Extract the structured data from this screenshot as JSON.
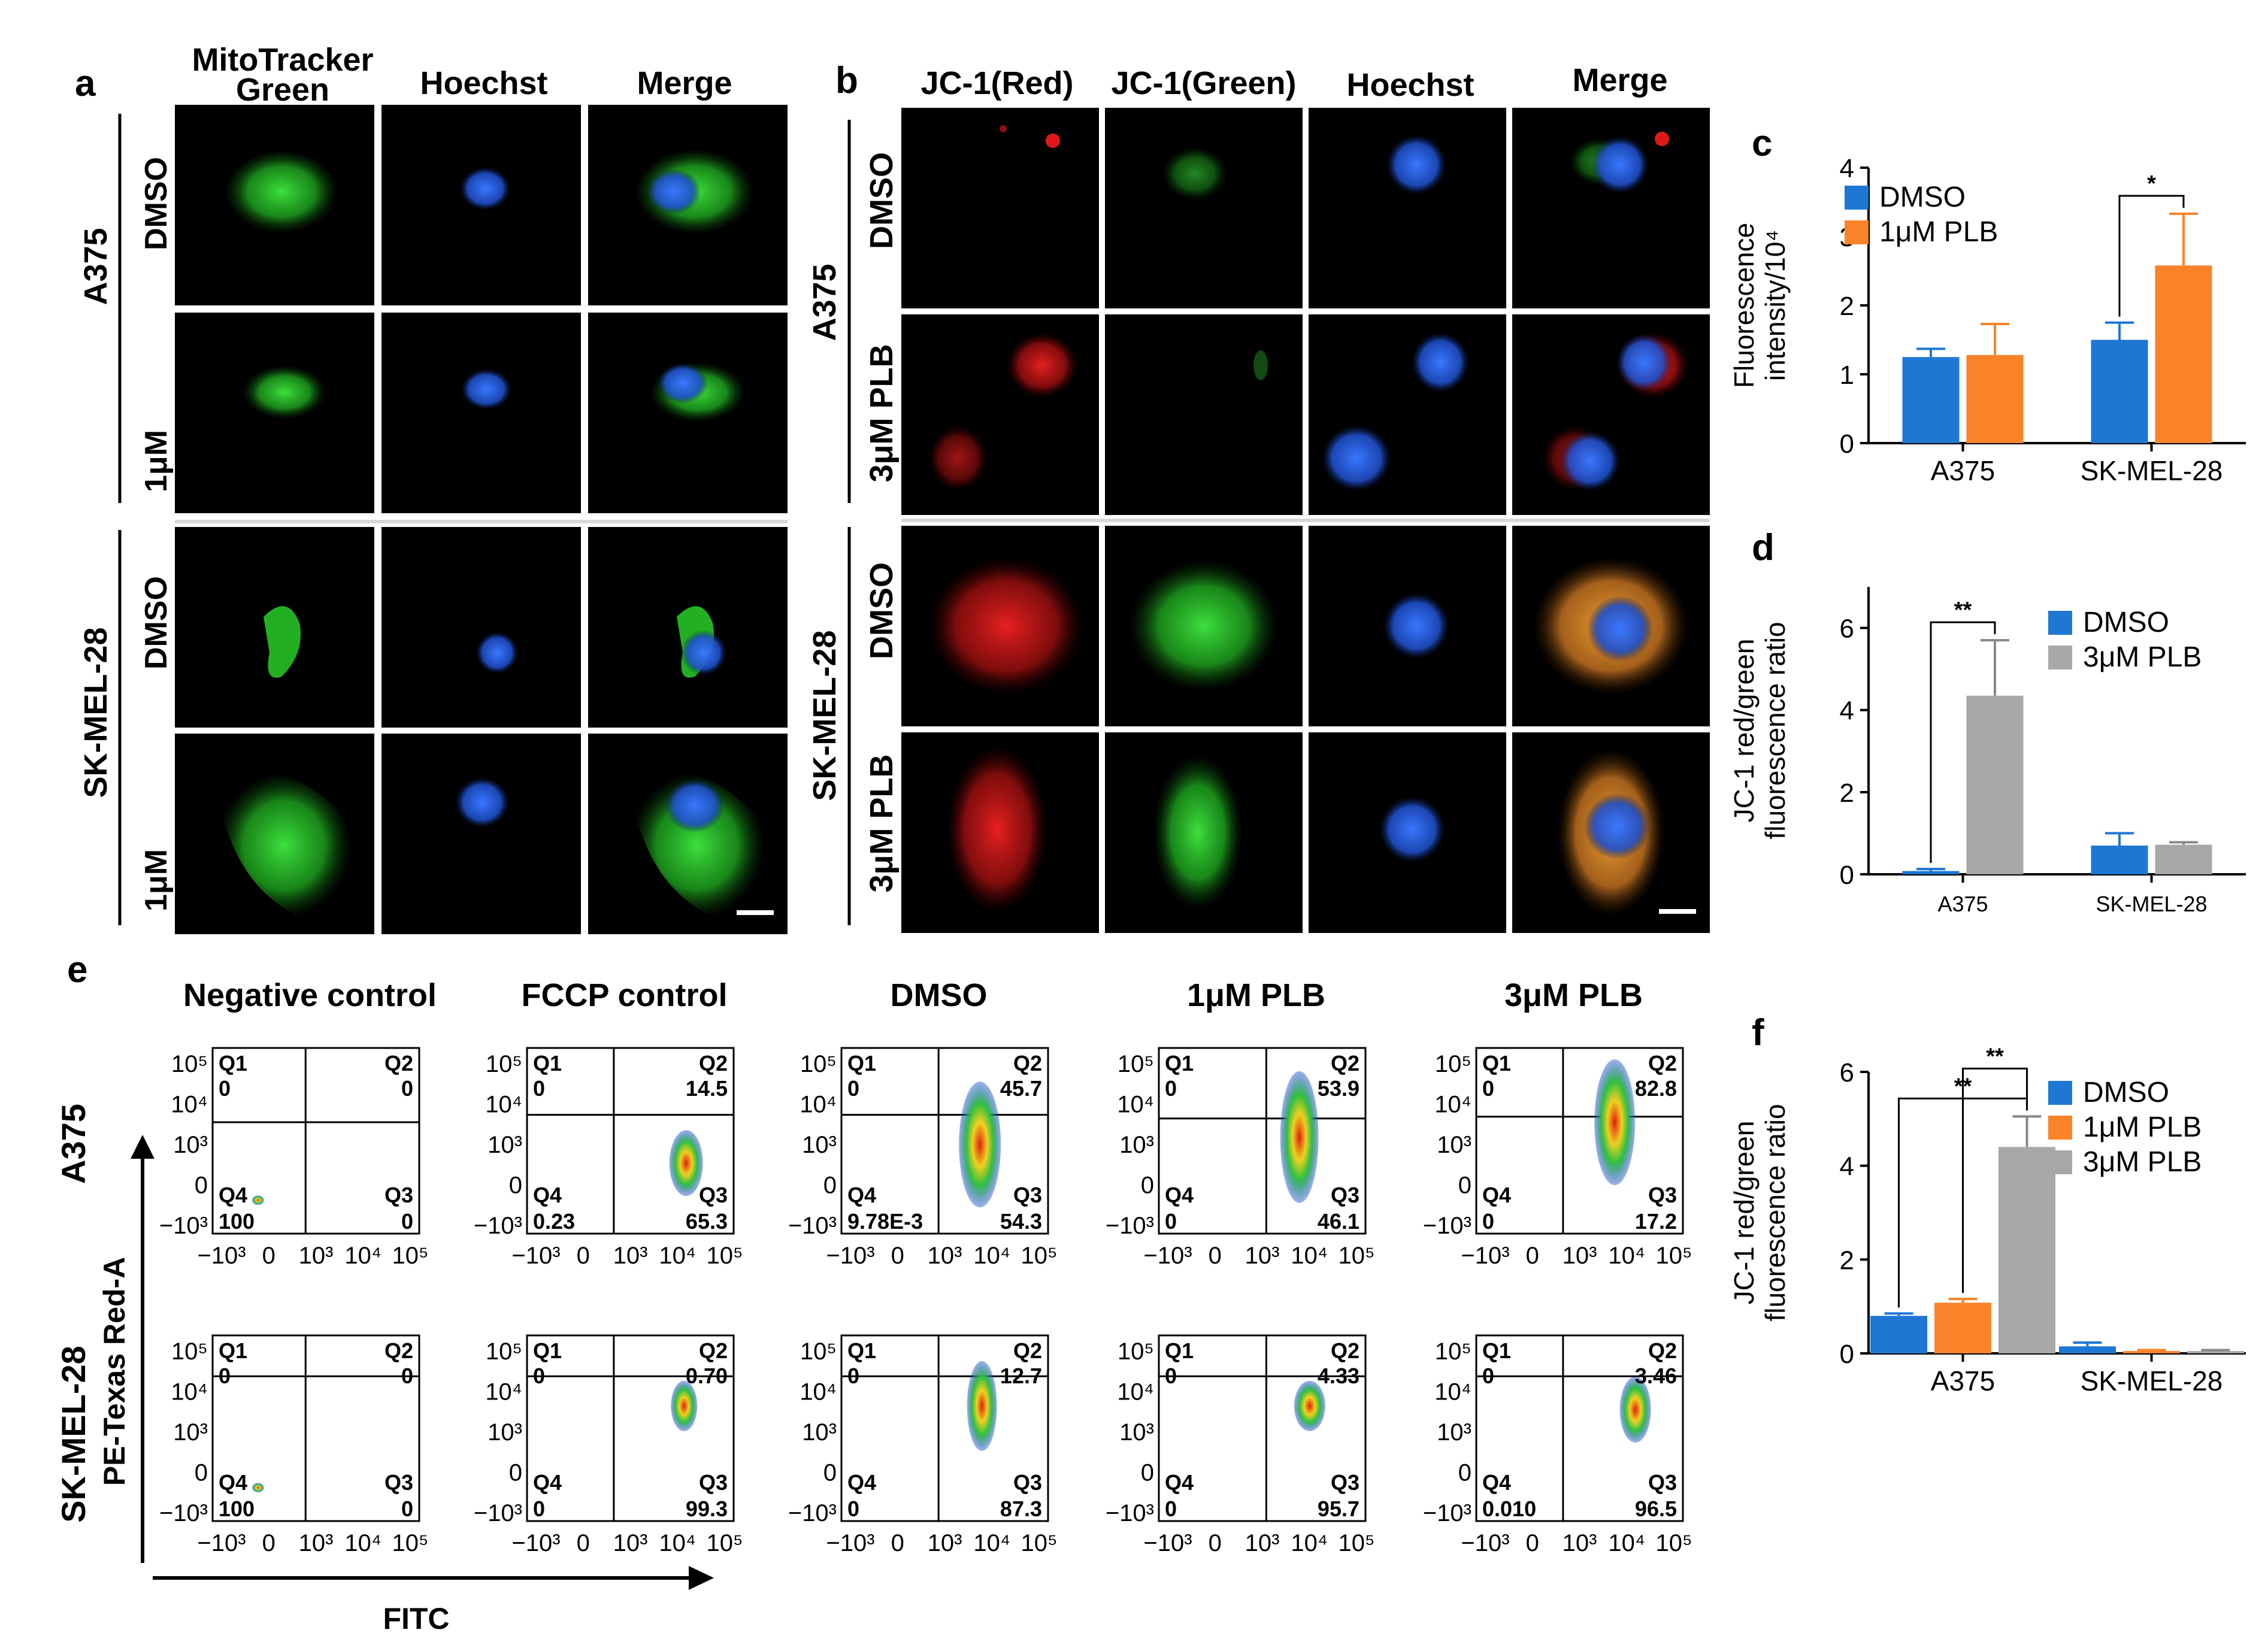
{
  "panel_letters": {
    "a": "a",
    "b": "b",
    "c": "c",
    "d": "d",
    "e": "e",
    "f": "f"
  },
  "panel_a": {
    "columns": [
      "MitoTracker",
      "Green",
      "Hoechst",
      "Merge"
    ],
    "cell_lines": [
      "A375",
      "SK-MEL-28"
    ],
    "treatments": [
      "DMSO",
      "1μM"
    ],
    "colors": {
      "mito": "#2fc82f",
      "hoechst": "#2a5fe0"
    }
  },
  "panel_b": {
    "columns": [
      "JC-1(Red)",
      "JC-1(Green)",
      "Hoechst",
      "Merge"
    ],
    "cell_lines": [
      "A375",
      "SK-MEL-28"
    ],
    "treatments": [
      "DMSO",
      "3μM PLB"
    ],
    "colors": {
      "red": "#d01818",
      "green": "#22b022",
      "hoechst": "#2a5fe0",
      "merge_orange": "#d88a2a"
    }
  },
  "panel_e": {
    "conditions": [
      "Negative control",
      "FCCP control",
      "DMSO",
      "1μM PLB",
      "3μM PLB"
    ],
    "cell_lines": [
      "A375",
      "SK-MEL-28"
    ],
    "y_axis_label": "PE-Texas Red-A",
    "x_axis_label": "FITC",
    "quadrant_labels": [
      "Q1",
      "Q2",
      "Q3",
      "Q4"
    ],
    "y_ticks": [
      "10⁵",
      "10⁴",
      "10³",
      "0",
      "−10³"
    ],
    "x_ticks": [
      "−10³",
      "0",
      "10³",
      "10⁴",
      "10⁵"
    ],
    "plots": [
      {
        "line": "A375",
        "cond": "Negative control",
        "q1": "0",
        "q2": "0",
        "q3": "0",
        "q4": "100"
      },
      {
        "line": "A375",
        "cond": "FCCP control",
        "q1": "0",
        "q2": "14.5",
        "q3": "65.3",
        "q4": "0.23"
      },
      {
        "line": "A375",
        "cond": "DMSO",
        "q1": "0",
        "q2": "45.7",
        "q3": "54.3",
        "q4": "9.78E-3"
      },
      {
        "line": "A375",
        "cond": "1μM PLB",
        "q1": "0",
        "q2": "53.9",
        "q3": "46.1",
        "q4": "0"
      },
      {
        "line": "A375",
        "cond": "3μM PLB",
        "q1": "0",
        "q2": "82.8",
        "q3": "17.2",
        "q4": "0"
      },
      {
        "line": "SK-MEL-28",
        "cond": "Negative control",
        "q1": "0",
        "q2": "0",
        "q3": "0",
        "q4": "100"
      },
      {
        "line": "SK-MEL-28",
        "cond": "FCCP control",
        "q1": "0",
        "q2": "0.70",
        "q3": "99.3",
        "q4": "0"
      },
      {
        "line": "SK-MEL-28",
        "cond": "DMSO",
        "q1": "0",
        "q2": "12.7",
        "q3": "87.3",
        "q4": "0"
      },
      {
        "line": "SK-MEL-28",
        "cond": "1μM PLB",
        "q1": "0",
        "q2": "4.33",
        "q3": "95.7",
        "q4": "0"
      },
      {
        "line": "SK-MEL-28",
        "cond": "3μM PLB",
        "q1": "0",
        "q2": "3.46",
        "q3": "96.5",
        "q4": "0.010"
      }
    ]
  },
  "chart_data": [
    {
      "id": "c",
      "type": "bar",
      "categories": [
        "A375",
        "SK-MEL-28"
      ],
      "series": [
        {
          "name": "DMSO",
          "color": "#1f77d4",
          "values": [
            1.25,
            1.5
          ],
          "errors": [
            0.12,
            0.25
          ]
        },
        {
          "name": "1μM PLB",
          "color": "#fa8228",
          "values": [
            1.28,
            2.58
          ],
          "errors": [
            0.45,
            0.75
          ]
        }
      ],
      "ylabel_line1": "Fluorescence",
      "ylabel_line2": "intensity/10⁴",
      "ylim": [
        0,
        4
      ],
      "yticks": [
        0,
        1,
        2,
        3,
        4
      ],
      "significance": [
        {
          "category": 1,
          "label": "*"
        }
      ]
    },
    {
      "id": "d",
      "type": "bar",
      "categories": [
        "A375",
        "SK-MEL-28"
      ],
      "series": [
        {
          "name": "DMSO",
          "color": "#1f77d4",
          "values": [
            0.08,
            0.7
          ],
          "errors": [
            0.05,
            0.3
          ]
        },
        {
          "name": "3μM PLB",
          "color": "#a8a8a8",
          "values": [
            4.35,
            0.72
          ],
          "errors": [
            1.35,
            0.06
          ]
        }
      ],
      "ylabel_line1": "JC-1 red/green",
      "ylabel_line2": "fluorescence ratio",
      "ylim": [
        0,
        7
      ],
      "yticks": [
        0,
        2,
        4,
        6
      ],
      "significance": [
        {
          "category": 0,
          "label": "**"
        }
      ]
    },
    {
      "id": "f",
      "type": "bar",
      "categories": [
        "A375",
        "SK-MEL-28"
      ],
      "series": [
        {
          "name": "DMSO",
          "color": "#1f77d4",
          "values": [
            0.8,
            0.15
          ],
          "errors": [
            0.05,
            0.08
          ]
        },
        {
          "name": "1μM PLB",
          "color": "#fa8228",
          "values": [
            1.08,
            0.05
          ],
          "errors": [
            0.08,
            0.02
          ]
        },
        {
          "name": "3μM PLB",
          "color": "#a8a8a8",
          "values": [
            4.4,
            0.05
          ],
          "errors": [
            0.65,
            0.02
          ]
        }
      ],
      "ylabel_line1": "JC-1 red/green",
      "ylabel_line2": "fluorescence ratio",
      "ylim": [
        0,
        6
      ],
      "yticks": [
        0,
        2,
        4,
        6
      ],
      "significance": [
        {
          "category": 0,
          "label": "**",
          "pair": [
            0,
            2
          ]
        },
        {
          "category": 0,
          "label": "**",
          "pair": [
            1,
            2
          ]
        }
      ]
    }
  ]
}
